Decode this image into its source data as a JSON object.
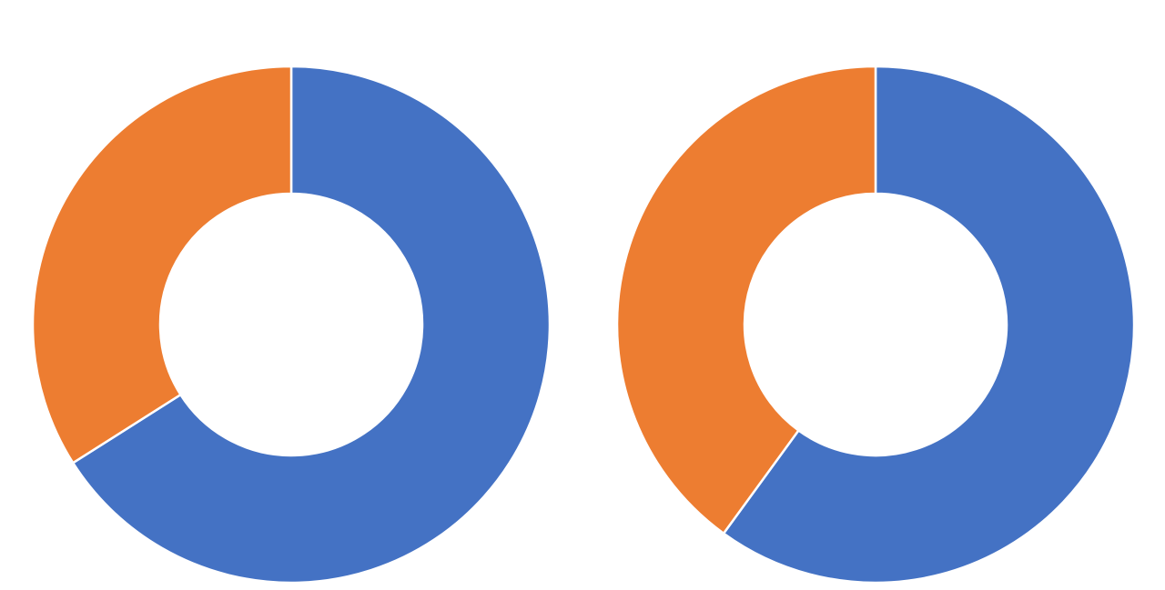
{
  "chart_data": [
    {
      "type": "donut",
      "values": [
        66,
        34
      ],
      "colors": [
        "#4472c4",
        "#ed7d31"
      ]
    },
    {
      "type": "donut",
      "values": [
        60,
        40
      ],
      "colors": [
        "#4472c4",
        "#ed7d31"
      ]
    }
  ]
}
